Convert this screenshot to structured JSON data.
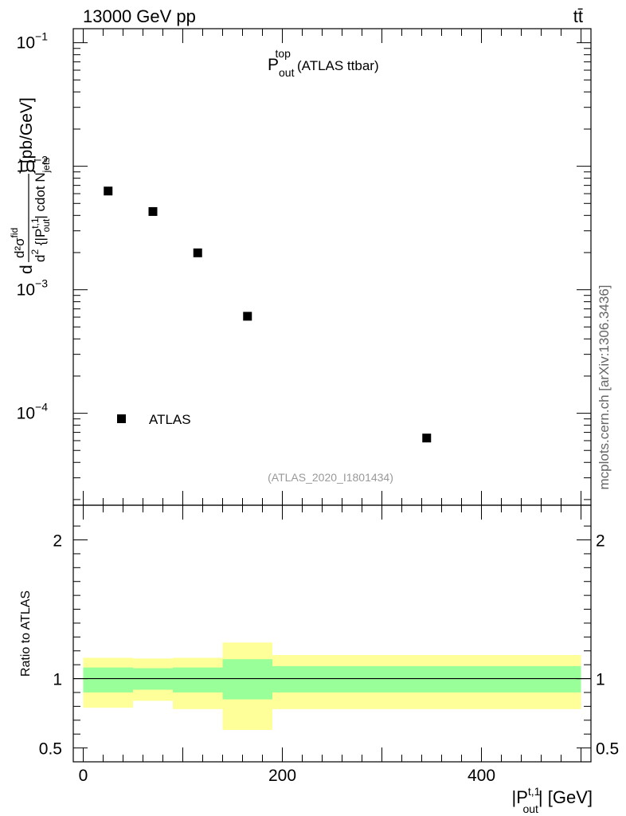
{
  "header": {
    "energy_label": "13000 GeV pp",
    "process_label": "tt̄",
    "side_label": "mcplots.cern.ch [arXiv:1306.3436]",
    "analysis_id": "(ATLAS_2020_I1801434)"
  },
  "colors": {
    "stat_band": "#99ff99",
    "syst_band": "#ffff99",
    "marker": "#000000"
  },
  "chart_data": [
    {
      "type": "scatter",
      "title_main": "P",
      "title_sup": "top",
      "title_sub": "out",
      "title_suffix": "(ATLAS ttbar)",
      "ylabel": {
        "part1": "d",
        "numerator": "d²σ",
        "num_sup": "fid",
        "den_a": "d",
        "den_a_sup": "2",
        "den_b": " {|P",
        "den_b_sup": "t,1",
        "den_b_sub": "out",
        "den_c": "| cdot N",
        "den_c_sub": "jets",
        "suffix": "} [pb/GeV]"
      },
      "yscale": "log",
      "ylim": [
        1.8e-05,
        0.13
      ],
      "xlim": [
        -10,
        510
      ],
      "y_tick_labels": [
        {
          "base": "10",
          "exp": "−1",
          "value": 0.1
        },
        {
          "base": "10",
          "exp": "−2",
          "value": 0.01
        },
        {
          "base": "10",
          "exp": "−3",
          "value": 0.001
        },
        {
          "base": "10",
          "exp": "−4",
          "value": 0.0001
        }
      ],
      "legend": {
        "position": "bottom-left",
        "entries": [
          "ATLAS"
        ]
      },
      "series": [
        {
          "name": "ATLAS",
          "x": [
            25,
            70,
            115,
            165,
            345
          ],
          "y": [
            0.0063,
            0.0043,
            0.00199,
            0.00061,
            6.3e-05
          ]
        }
      ]
    },
    {
      "type": "area",
      "ylabel": "Ratio to ATLAS",
      "xlabel_main": "|P",
      "xlabel_sup": "t,1",
      "xlabel_sub": "out",
      "xlabel_suffix": "| [GeV]",
      "xlim": [
        -10,
        510
      ],
      "ylim": [
        0.4,
        2.25
      ],
      "x_tick_labels": [
        "0",
        "200",
        "400"
      ],
      "x_tick_values": [
        0,
        200,
        400
      ],
      "y_tick_labels": [
        "0.5",
        "1",
        "2"
      ],
      "y_tick_values": [
        0.5,
        1,
        2
      ],
      "reference_line": 1,
      "bins": [
        {
          "xlo": 0,
          "xhi": 50,
          "stat": [
            0.9,
            1.08
          ],
          "syst": [
            0.79,
            1.15
          ]
        },
        {
          "xlo": 50,
          "xhi": 90,
          "stat": [
            0.92,
            1.075
          ],
          "syst": [
            0.84,
            1.145
          ]
        },
        {
          "xlo": 90,
          "xhi": 140,
          "stat": [
            0.9,
            1.08
          ],
          "syst": [
            0.78,
            1.15
          ]
        },
        {
          "xlo": 140,
          "xhi": 190,
          "stat": [
            0.85,
            1.14
          ],
          "syst": [
            0.63,
            1.26
          ]
        },
        {
          "xlo": 190,
          "xhi": 500,
          "stat": [
            0.9,
            1.09
          ],
          "syst": [
            0.78,
            1.17
          ]
        }
      ]
    }
  ]
}
